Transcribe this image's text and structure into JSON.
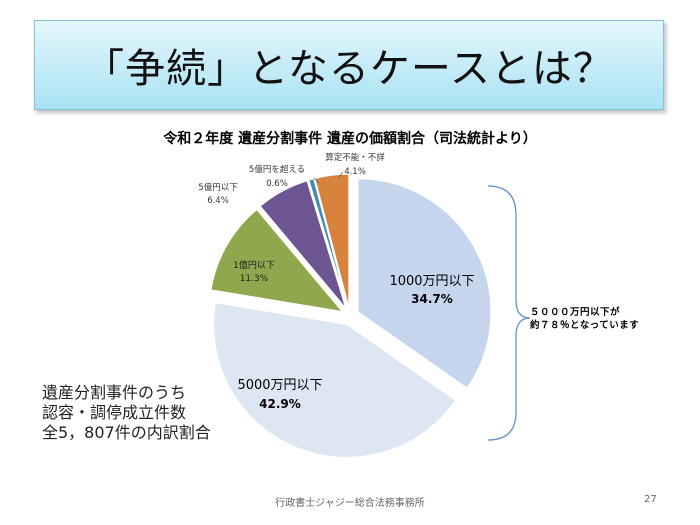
{
  "slide": {
    "title": "「争続」となるケースとは？",
    "note_lines": [
      "遺産分割事件のうち",
      "認容・調停成立件数",
      "全5，807件の内訳割合"
    ],
    "bracket_note_lines": [
      "５０００万円以下が",
      "約７８％となっています"
    ],
    "footer": "行政書士ジャジー総合法務事務所",
    "page_number": "27"
  },
  "chart_data": {
    "type": "pie",
    "title": "令和２年度 遺産分割事件 遺産の価額割合（司法統計より）",
    "slices": [
      {
        "label": "1000万円以下",
        "value_label": "34.7%",
        "value": 34.7,
        "color": "#c5d5ee"
      },
      {
        "label": "5000万円以下",
        "value_label": "42.9%",
        "value": 42.9,
        "color": "#dde6f3"
      },
      {
        "label": "1億円以下",
        "value_label": "11.3%",
        "value": 11.3,
        "color": "#8fa84e"
      },
      {
        "label": "5億円以下",
        "value_label": "6.4%",
        "value": 6.4,
        "color": "#6c5592"
      },
      {
        "label": "5億円を超える",
        "value_label": "0.6%",
        "value": 0.6,
        "color": "#3e8eb4"
      },
      {
        "label": "算定不能・不詳",
        "value_label": "4.1%",
        "value": 4.1,
        "color": "#d7833d"
      }
    ]
  }
}
